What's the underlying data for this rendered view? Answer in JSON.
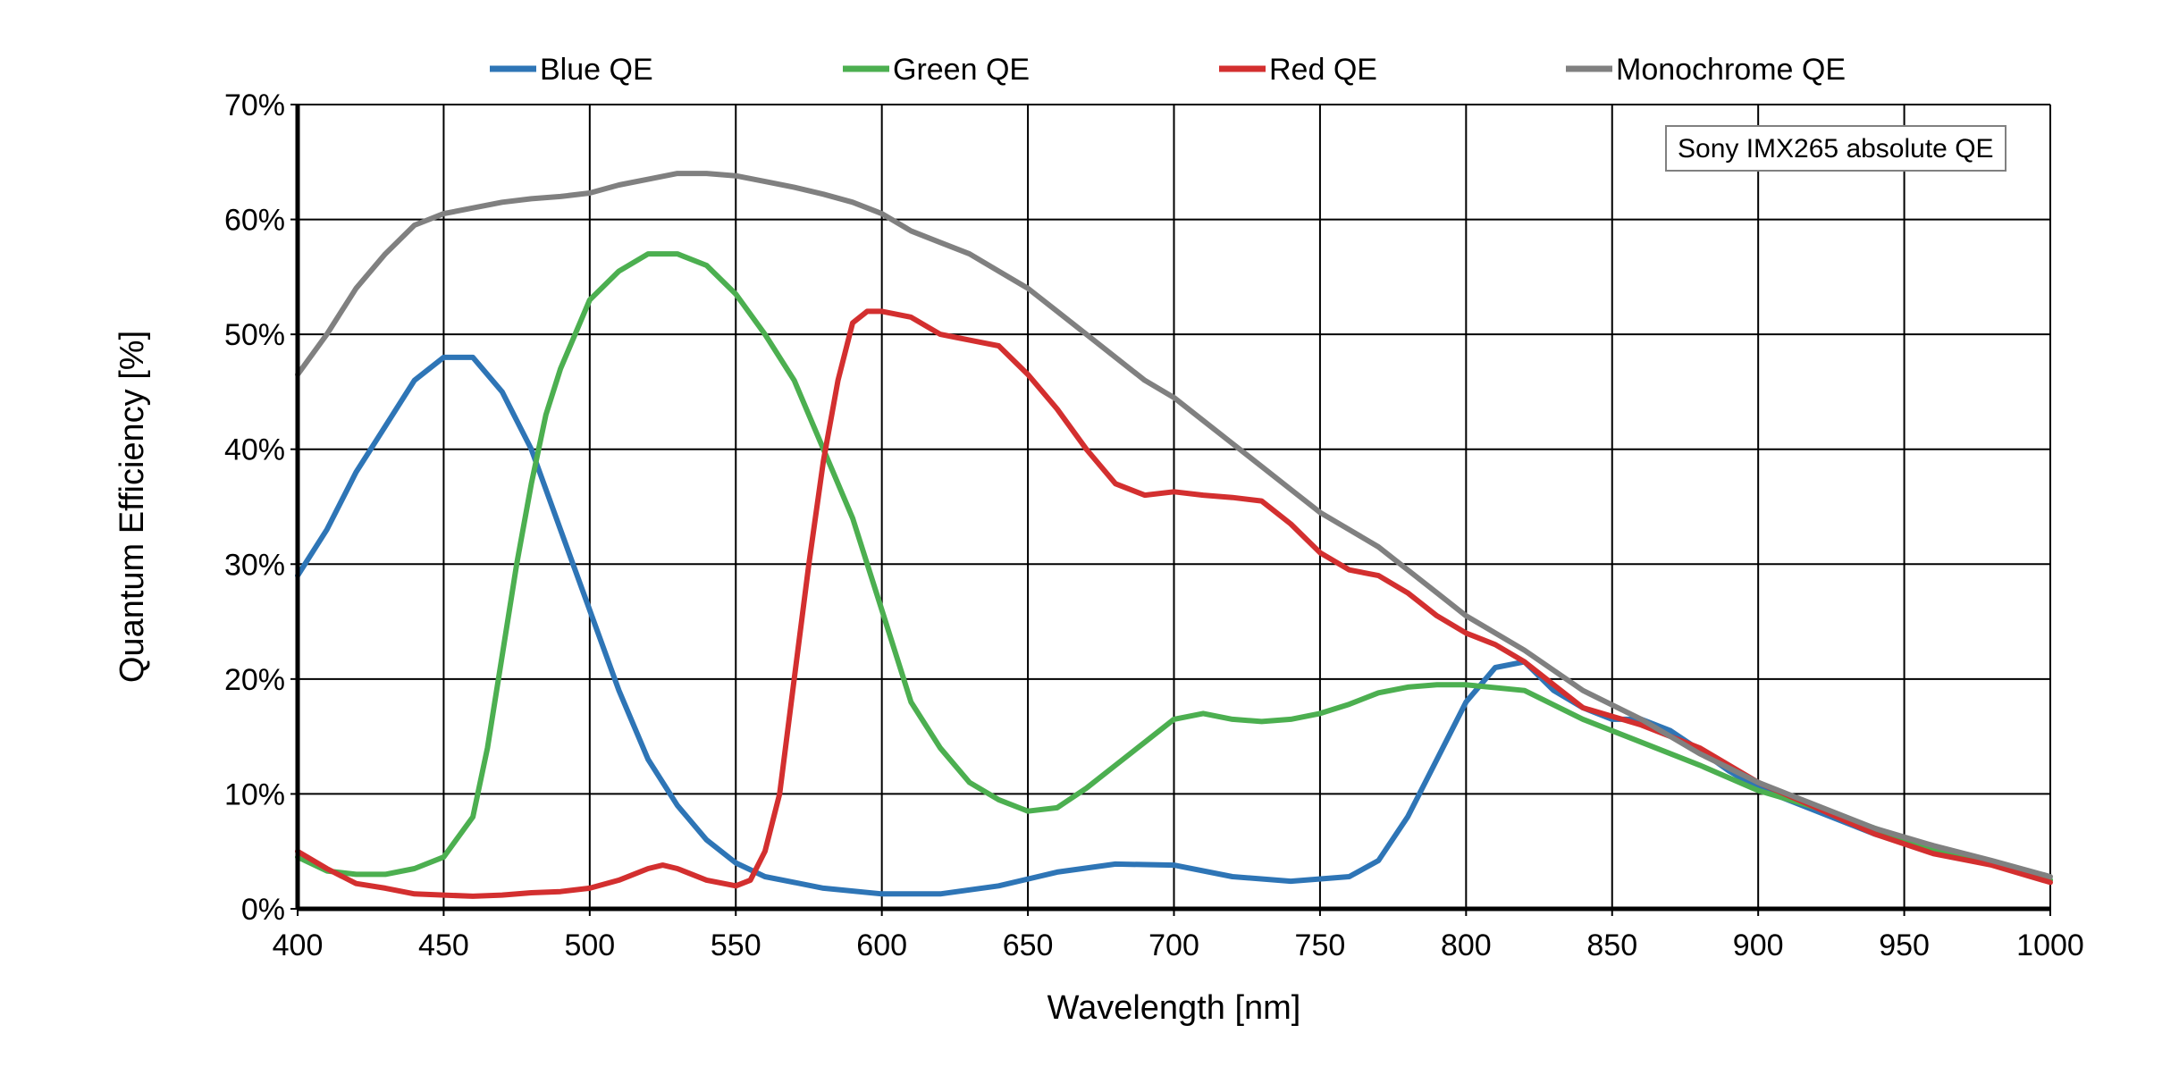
{
  "chart_data": {
    "type": "line",
    "title": "",
    "xlabel": "Wavelength [nm]",
    "ylabel": "Quantum Efficiency [%]",
    "xlim": [
      400,
      1000
    ],
    "ylim": [
      0,
      70
    ],
    "x_ticks": [
      400,
      450,
      500,
      550,
      600,
      650,
      700,
      750,
      800,
      850,
      900,
      950,
      1000
    ],
    "x_tick_labels": [
      "400",
      "450",
      "500",
      "550",
      "600",
      "650",
      "700",
      "750",
      "800",
      "850",
      "900",
      "950",
      "1000"
    ],
    "y_ticks": [
      0,
      10,
      20,
      30,
      40,
      50,
      60,
      70
    ],
    "y_tick_labels": [
      "0%",
      "10%",
      "20%",
      "30%",
      "40%",
      "50%",
      "60%",
      "70%"
    ],
    "grid": true,
    "legend_position": "top",
    "annotation": "Sony IMX265 absolute QE",
    "series": [
      {
        "name": "Blue QE",
        "color": "#2e75b6",
        "x": [
          400,
          410,
          420,
          430,
          440,
          450,
          460,
          470,
          480,
          490,
          500,
          510,
          520,
          530,
          540,
          550,
          560,
          570,
          580,
          600,
          620,
          640,
          660,
          680,
          700,
          720,
          740,
          760,
          770,
          780,
          790,
          800,
          810,
          820,
          830,
          840,
          850,
          860,
          870,
          880,
          890,
          900,
          920,
          940,
          960,
          980,
          1000
        ],
        "values": [
          29,
          33,
          38,
          42,
          46,
          48,
          48,
          45,
          40,
          33,
          26,
          19,
          13,
          9,
          6,
          4,
          2.8,
          2.3,
          1.8,
          1.3,
          1.3,
          2.0,
          3.2,
          3.9,
          3.8,
          2.8,
          2.4,
          2.8,
          4.2,
          8.0,
          13,
          18,
          21,
          21.5,
          19,
          17.5,
          16.5,
          16.5,
          15.5,
          13.8,
          12.0,
          10.5,
          8.5,
          6.5,
          5.0,
          4.0,
          2.5
        ]
      },
      {
        "name": "Green QE",
        "color": "#4caf50",
        "x": [
          400,
          410,
          420,
          430,
          440,
          450,
          460,
          465,
          470,
          475,
          480,
          485,
          490,
          500,
          510,
          520,
          530,
          540,
          550,
          560,
          570,
          580,
          590,
          600,
          610,
          620,
          630,
          640,
          650,
          660,
          670,
          680,
          690,
          700,
          710,
          720,
          730,
          740,
          750,
          760,
          770,
          780,
          790,
          800,
          820,
          840,
          860,
          880,
          900,
          920,
          940,
          960,
          980,
          1000
        ],
        "values": [
          4.5,
          3.3,
          3.0,
          3.0,
          3.5,
          4.5,
          8.0,
          14,
          22,
          30,
          37,
          43,
          47,
          53,
          55.5,
          57,
          57,
          56,
          53.5,
          50,
          46,
          40,
          34,
          26,
          18,
          14,
          11,
          9.5,
          8.5,
          8.8,
          10.5,
          12.5,
          14.5,
          16.5,
          17,
          16.5,
          16.3,
          16.5,
          17,
          17.8,
          18.8,
          19.3,
          19.5,
          19.5,
          19.0,
          16.5,
          14.5,
          12.5,
          10.3,
          8.8,
          7.0,
          5.2,
          4.0,
          2.5
        ]
      },
      {
        "name": "Red QE",
        "color": "#d32f2f",
        "x": [
          400,
          410,
          420,
          430,
          440,
          450,
          460,
          470,
          480,
          490,
          500,
          510,
          520,
          525,
          530,
          540,
          550,
          555,
          560,
          565,
          570,
          575,
          580,
          585,
          590,
          595,
          600,
          610,
          620,
          630,
          640,
          650,
          660,
          670,
          680,
          690,
          700,
          710,
          720,
          730,
          740,
          750,
          760,
          770,
          780,
          790,
          800,
          810,
          820,
          830,
          840,
          860,
          880,
          900,
          920,
          940,
          960,
          980,
          1000
        ],
        "values": [
          5,
          3.5,
          2.2,
          1.8,
          1.3,
          1.2,
          1.1,
          1.2,
          1.4,
          1.5,
          1.8,
          2.5,
          3.5,
          3.8,
          3.5,
          2.5,
          2.0,
          2.5,
          5,
          10,
          20,
          30,
          39,
          46,
          51,
          52,
          52,
          51.5,
          50,
          49.5,
          49,
          46.5,
          43.5,
          40,
          37,
          36,
          36.3,
          36,
          35.8,
          35.5,
          33.5,
          31,
          29.5,
          29,
          27.5,
          25.5,
          24,
          23,
          21.5,
          19.5,
          17.5,
          16,
          14,
          11,
          8.8,
          6.5,
          4.8,
          3.8,
          2.3
        ]
      },
      {
        "name": "Monochrome QE",
        "color": "#808080",
        "x": [
          400,
          410,
          420,
          430,
          440,
          450,
          460,
          470,
          480,
          490,
          500,
          510,
          520,
          530,
          540,
          550,
          560,
          570,
          580,
          590,
          600,
          610,
          620,
          630,
          640,
          650,
          660,
          670,
          680,
          690,
          700,
          710,
          720,
          730,
          740,
          750,
          760,
          770,
          780,
          790,
          800,
          820,
          840,
          860,
          880,
          900,
          920,
          940,
          960,
          980,
          1000
        ],
        "values": [
          46.5,
          50,
          54,
          57,
          59.5,
          60.5,
          61,
          61.5,
          61.8,
          62,
          62.3,
          63,
          63.5,
          64,
          64,
          63.8,
          63.3,
          62.8,
          62.2,
          61.5,
          60.5,
          59,
          58,
          57,
          55.5,
          54,
          52,
          50,
          48,
          46,
          44.5,
          42.5,
          40.5,
          38.5,
          36.5,
          34.5,
          33,
          31.5,
          29.5,
          27.5,
          25.5,
          22.5,
          19,
          16.5,
          13.5,
          11,
          9,
          7,
          5.5,
          4.2,
          2.8
        ]
      }
    ]
  }
}
